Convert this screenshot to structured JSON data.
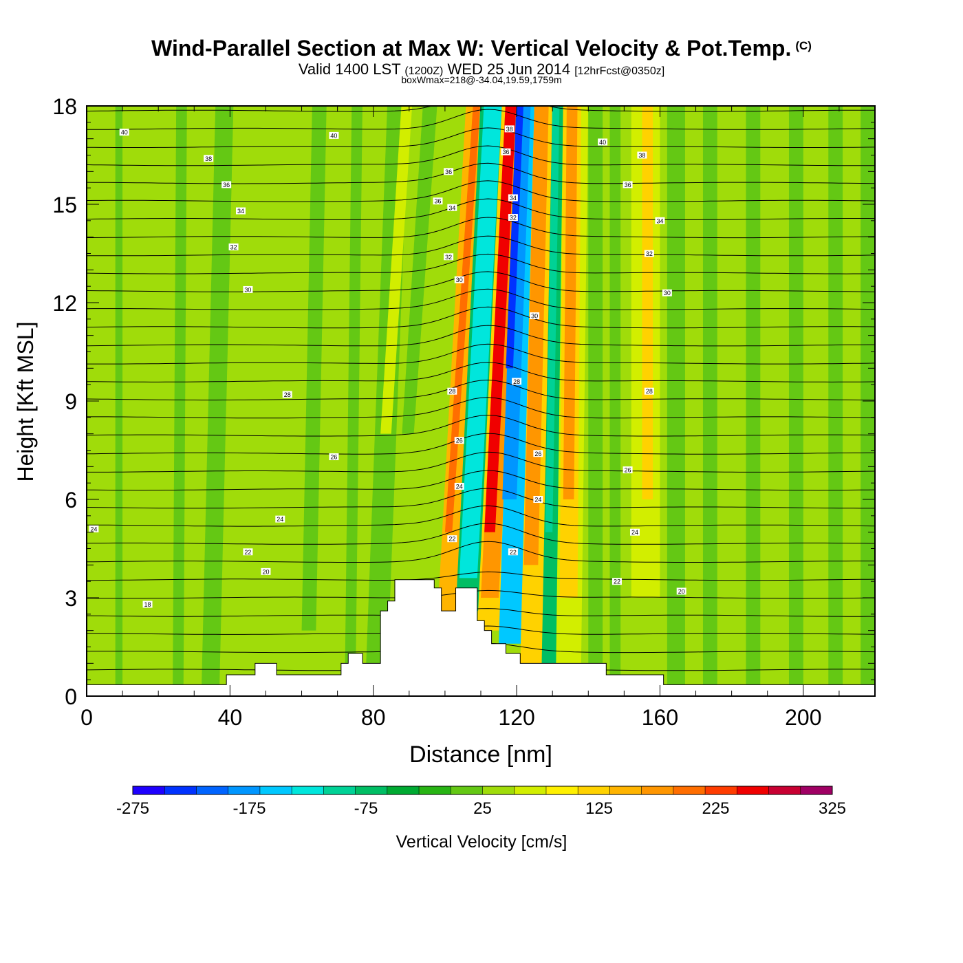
{
  "title": "Wind-Parallel Section at Max W: Vertical Velocity & Pot.Temp.",
  "copyright_mark": "(C)",
  "subtitle": {
    "valid": "Valid 1400 LST",
    "utc": "(1200Z)",
    "date": "WED 25 Jun 2014",
    "forecast": "[12hrFcst@0350z]"
  },
  "box_w_max": "boxWmax=218@-34.04,19.59,1759m",
  "chart_data": {
    "type": "heatmap",
    "xlabel": "Distance [nm]",
    "ylabel": "Height [Kft MSL]",
    "xlim": [
      0,
      220
    ],
    "ylim": [
      0,
      18
    ],
    "x_ticks": [
      "0",
      "40",
      "80",
      "120",
      "160",
      "200"
    ],
    "y_ticks": [
      "0",
      "3",
      "6",
      "9",
      "12",
      "15",
      "18"
    ],
    "colorbar": {
      "title": "Vertical Velocity [cm/s]",
      "ticks": [
        "-275",
        "-175",
        "-75",
        "25",
        "125",
        "225",
        "325"
      ],
      "min": -275,
      "max": 325,
      "step": 25,
      "colors": [
        "#1e00ff",
        "#0032ff",
        "#0064ff",
        "#0096ff",
        "#00c8ff",
        "#00e6dc",
        "#00d296",
        "#00be64",
        "#00aa32",
        "#28b414",
        "#64c814",
        "#a0dc0a",
        "#d2ee00",
        "#fff000",
        "#ffd200",
        "#ffb400",
        "#ff9600",
        "#ff6e00",
        "#ff3c00",
        "#f00000",
        "#c80032",
        "#a00064"
      ]
    },
    "terrain_kft": [
      [
        0,
        0.35
      ],
      [
        39,
        0.35
      ],
      [
        39,
        0.65
      ],
      [
        47,
        0.65
      ],
      [
        47,
        1.0
      ],
      [
        53,
        1.0
      ],
      [
        53,
        0.65
      ],
      [
        71,
        0.65
      ],
      [
        71,
        1.0
      ],
      [
        73,
        1.0
      ],
      [
        73,
        1.3
      ],
      [
        77,
        1.3
      ],
      [
        77,
        1.0
      ],
      [
        82,
        1.0
      ],
      [
        82,
        2.6
      ],
      [
        84,
        2.6
      ],
      [
        84,
        2.9
      ],
      [
        86,
        2.9
      ],
      [
        86,
        3.55
      ],
      [
        97,
        3.55
      ],
      [
        97,
        3.3
      ],
      [
        99,
        3.3
      ],
      [
        99,
        2.6
      ],
      [
        103,
        2.6
      ],
      [
        103,
        3.3
      ],
      [
        109,
        3.3
      ],
      [
        109,
        2.3
      ],
      [
        111,
        2.3
      ],
      [
        111,
        2.0
      ],
      [
        113,
        2.0
      ],
      [
        113,
        1.6
      ],
      [
        117,
        1.6
      ],
      [
        117,
        1.3
      ],
      [
        121,
        1.3
      ],
      [
        121,
        1.0
      ],
      [
        145,
        1.0
      ],
      [
        145,
        0.65
      ],
      [
        161,
        0.65
      ],
      [
        161,
        0.35
      ],
      [
        220,
        0.35
      ]
    ],
    "theta_contour_labels": [
      {
        "text": "40",
        "x": 10.5,
        "y": 17.2
      },
      {
        "text": "40",
        "x": 69,
        "y": 17.1
      },
      {
        "text": "38",
        "x": 34,
        "y": 16.4
      },
      {
        "text": "36",
        "x": 39,
        "y": 15.6
      },
      {
        "text": "34",
        "x": 43,
        "y": 14.8
      },
      {
        "text": "32",
        "x": 41,
        "y": 13.7
      },
      {
        "text": "30",
        "x": 45,
        "y": 12.4
      },
      {
        "text": "28",
        "x": 56,
        "y": 9.2
      },
      {
        "text": "26",
        "x": 69,
        "y": 7.3
      },
      {
        "text": "24",
        "x": 54,
        "y": 5.4
      },
      {
        "text": "24",
        "x": 2,
        "y": 5.1
      },
      {
        "text": "22",
        "x": 45,
        "y": 4.4
      },
      {
        "text": "20",
        "x": 50,
        "y": 3.8
      },
      {
        "text": "18",
        "x": 17,
        "y": 2.8
      },
      {
        "text": "36",
        "x": 101,
        "y": 16.0
      },
      {
        "text": "36",
        "x": 98,
        "y": 15.1
      },
      {
        "text": "34",
        "x": 102,
        "y": 14.9
      },
      {
        "text": "32",
        "x": 101,
        "y": 13.4
      },
      {
        "text": "30",
        "x": 104,
        "y": 12.7
      },
      {
        "text": "28",
        "x": 102,
        "y": 9.3
      },
      {
        "text": "26",
        "x": 104,
        "y": 7.8
      },
      {
        "text": "24",
        "x": 104,
        "y": 6.4
      },
      {
        "text": "22",
        "x": 102,
        "y": 4.8
      },
      {
        "text": "38",
        "x": 118,
        "y": 17.3
      },
      {
        "text": "36",
        "x": 117,
        "y": 16.6
      },
      {
        "text": "34",
        "x": 119,
        "y": 15.2
      },
      {
        "text": "32",
        "x": 119,
        "y": 14.6
      },
      {
        "text": "30",
        "x": 125,
        "y": 11.6
      },
      {
        "text": "28",
        "x": 120,
        "y": 9.6
      },
      {
        "text": "26",
        "x": 126,
        "y": 7.4
      },
      {
        "text": "24",
        "x": 126,
        "y": 6.0
      },
      {
        "text": "22",
        "x": 119,
        "y": 4.4
      },
      {
        "text": "40",
        "x": 144,
        "y": 16.9
      },
      {
        "text": "38",
        "x": 155,
        "y": 16.5
      },
      {
        "text": "36",
        "x": 151,
        "y": 15.6
      },
      {
        "text": "34",
        "x": 160,
        "y": 14.5
      },
      {
        "text": "32",
        "x": 157,
        "y": 13.5
      },
      {
        "text": "30",
        "x": 162,
        "y": 12.3
      },
      {
        "text": "28",
        "x": 157,
        "y": 9.3
      },
      {
        "text": "26",
        "x": 151,
        "y": 6.9
      },
      {
        "text": "24",
        "x": 153,
        "y": 5.0
      },
      {
        "text": "22",
        "x": 148,
        "y": 3.5
      },
      {
        "text": "20",
        "x": 166,
        "y": 3.2
      }
    ]
  }
}
